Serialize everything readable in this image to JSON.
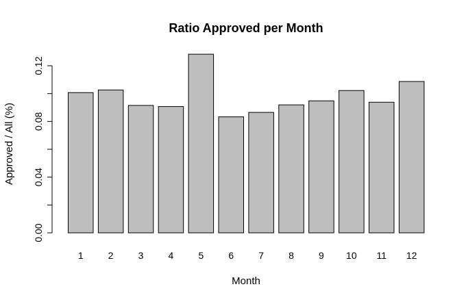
{
  "chart_data": {
    "type": "bar",
    "title": "Ratio Approved per Month",
    "xlabel": "Month",
    "ylabel": "Approved / All (%)",
    "categories": [
      "1",
      "2",
      "3",
      "4",
      "5",
      "6",
      "7",
      "8",
      "9",
      "10",
      "11",
      "12"
    ],
    "values": [
      0.1007,
      0.1026,
      0.0915,
      0.0907,
      0.1283,
      0.0833,
      0.0865,
      0.0919,
      0.0948,
      0.1022,
      0.0938,
      0.1087
    ],
    "ylim": [
      0,
      0.12
    ],
    "yticks": [
      0.0,
      0.02,
      0.04,
      0.06,
      0.08,
      0.1,
      0.12
    ],
    "ytick_labels": [
      "0.00",
      "",
      "0.04",
      "",
      "0.08",
      "",
      "0.12"
    ],
    "bar_color": "#bebebe",
    "edge_color": "#000000",
    "grid": false
  }
}
